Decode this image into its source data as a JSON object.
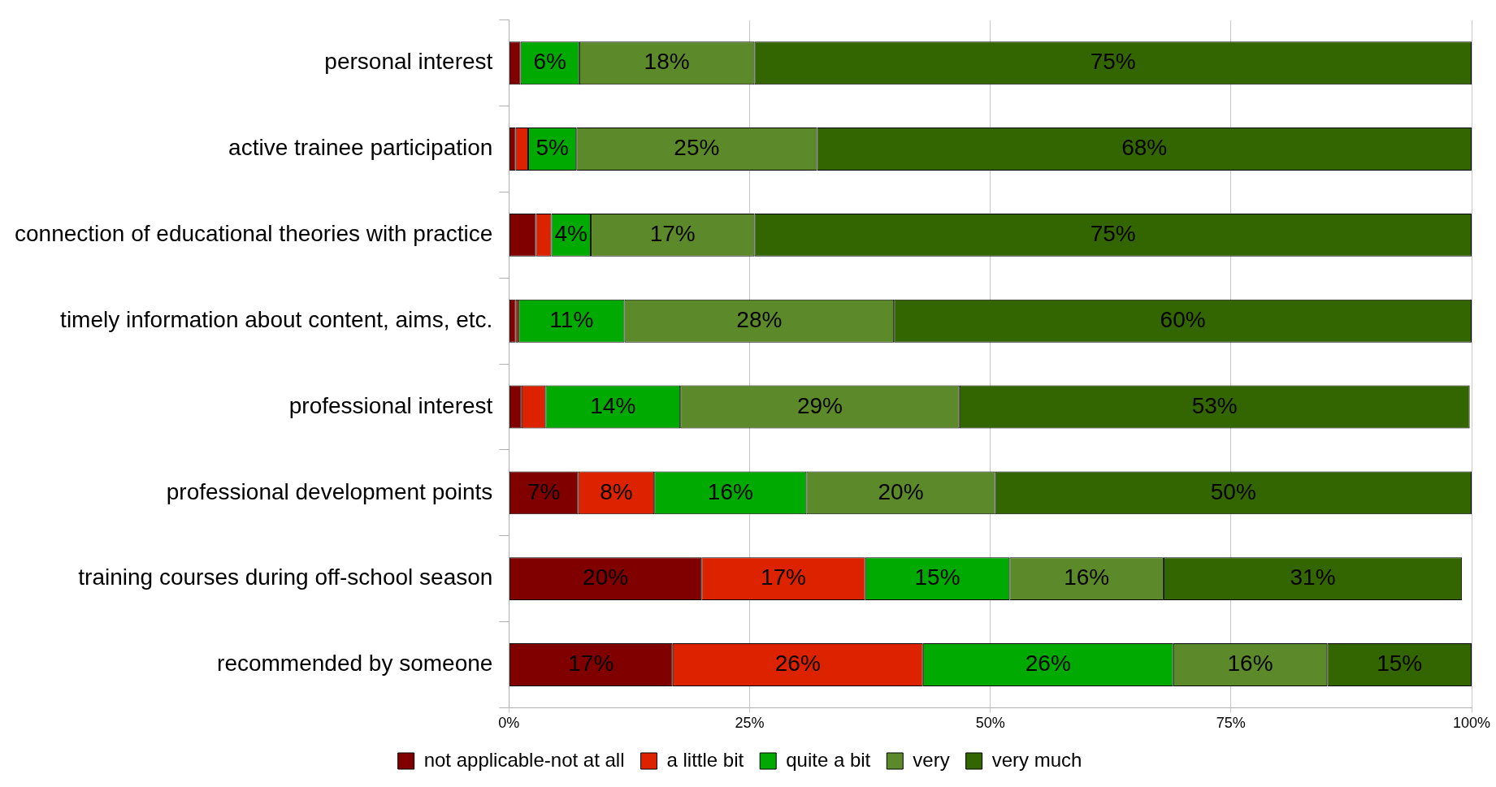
{
  "chart_data": {
    "type": "bar",
    "orientation": "horizontal",
    "stacked": true,
    "categories": [
      "personal interest",
      "active trainee participation",
      "connection of educational theories with practice",
      "timely information about content, aims, etc.",
      "professional interest",
      "professional development points",
      "training courses during off-school season",
      "recommended by someone"
    ],
    "series": [
      {
        "name": "not applicable-not at all",
        "color": "#800000",
        "values": [
          1.2,
          0.7,
          2.8,
          0.7,
          1.3,
          7.2,
          20,
          17
        ],
        "value_labels": [
          null,
          null,
          null,
          null,
          null,
          "7%",
          "20%",
          "17%"
        ]
      },
      {
        "name": "a little bit",
        "color": "#dd2200",
        "values": [
          0,
          1.3,
          1.6,
          0.3,
          2.5,
          7.9,
          17,
          26
        ],
        "value_labels": [
          null,
          null,
          null,
          null,
          null,
          "8%",
          "17%",
          "26%"
        ]
      },
      {
        "name": "quite a bit",
        "color": "#00aa00",
        "values": [
          6.1,
          5,
          4.1,
          11,
          14,
          15.8,
          15,
          26
        ],
        "value_labels": [
          "6%",
          "5%",
          "4%",
          "11%",
          "14%",
          "16%",
          "15%",
          "26%"
        ]
      },
      {
        "name": "very",
        "color": "#5c8a2a",
        "values": [
          18.2,
          25,
          17,
          28,
          29,
          19.6,
          16,
          16
        ],
        "value_labels": [
          "18%",
          "25%",
          "17%",
          "28%",
          "29%",
          "20%",
          "16%",
          "16%"
        ]
      },
      {
        "name": "very much",
        "color": "#336600",
        "values": [
          74.5,
          68,
          74.5,
          60,
          53,
          49.5,
          31,
          15
        ],
        "value_labels": [
          "75%",
          "68%",
          "75%",
          "60%",
          "53%",
          "50%",
          "31%",
          "15%"
        ]
      }
    ],
    "xlim": [
      0,
      100
    ],
    "xticks": [
      {
        "value": 0,
        "label": "0%"
      },
      {
        "value": 25,
        "label": "25%"
      },
      {
        "value": 50,
        "label": "50%"
      },
      {
        "value": 75,
        "label": "75%"
      },
      {
        "value": 100,
        "label": "100%"
      }
    ],
    "grid": "x",
    "legend": "bottom"
  }
}
